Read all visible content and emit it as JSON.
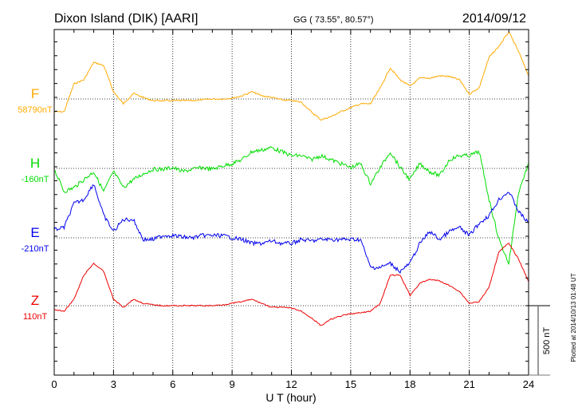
{
  "chart_data": {
    "type": "line",
    "title": "Dixon Island (DIK)  [AARI]",
    "coords": "GG ( 73.55°,  80.57°)",
    "date": "2014/09/12",
    "xlabel": "U T (hour)",
    "xlim": [
      0,
      24
    ],
    "xticks": [
      "0",
      "3",
      "6",
      "9",
      "12",
      "15",
      "18",
      "21",
      "24"
    ],
    "scale_bar_label": "500 nT",
    "scale_bar_nT": 500,
    "plotted_note": "Plotted at 2014/10/13 01:48 UT",
    "grid": "dotted vertical every 3 h, dotted baseline per component",
    "x": [
      0,
      0.5,
      1,
      1.5,
      2,
      2.5,
      3,
      3.5,
      4,
      4.5,
      5,
      5.5,
      6,
      6.5,
      7,
      7.5,
      8,
      8.5,
      9,
      9.5,
      10,
      10.5,
      11,
      11.5,
      12,
      12.5,
      13,
      13.5,
      14,
      14.5,
      15,
      15.5,
      16,
      16.5,
      17,
      17.5,
      18,
      18.5,
      19,
      19.5,
      20,
      20.5,
      21,
      21.5,
      22,
      22.5,
      23,
      23.5,
      24
    ],
    "series": [
      {
        "name": "F",
        "baseline_label": "58790nT",
        "color": "#ffaa00",
        "values": [
          -92,
          -92,
          109,
          138,
          264,
          241,
          52,
          -35,
          40,
          11,
          -12,
          -12,
          -12,
          -12,
          -12,
          -6,
          0,
          0,
          6,
          23,
          52,
          23,
          12,
          -6,
          -12,
          -23,
          -92,
          -150,
          -127,
          -92,
          -63,
          -35,
          -35,
          81,
          224,
          138,
          92,
          150,
          150,
          167,
          161,
          138,
          35,
          81,
          299,
          380,
          483,
          339,
          167
        ]
      },
      {
        "name": "H",
        "baseline_label": "-160nT",
        "color": "#00dd00",
        "values": [
          -6,
          -167,
          -138,
          -81,
          -23,
          -167,
          -23,
          -138,
          -81,
          -40,
          -6,
          -6,
          6,
          -23,
          -6,
          6,
          -6,
          17,
          35,
          63,
          121,
          132,
          150,
          121,
          92,
          92,
          63,
          92,
          63,
          35,
          6,
          35,
          -109,
          6,
          121,
          6,
          -81,
          35,
          -23,
          -52,
          63,
          92,
          92,
          121,
          -224,
          -512,
          -685,
          -167,
          35
        ]
      },
      {
        "name": "E",
        "baseline_label": "-210nT",
        "color": "#0000ee",
        "values": [
          58,
          75,
          247,
          276,
          391,
          161,
          46,
          132,
          132,
          -12,
          -12,
          17,
          17,
          6,
          0,
          17,
          17,
          17,
          0,
          -12,
          -40,
          -40,
          -23,
          -40,
          -40,
          -12,
          -23,
          -12,
          -12,
          -12,
          -12,
          -12,
          -213,
          -213,
          -184,
          -242,
          -184,
          -40,
          46,
          -12,
          46,
          75,
          17,
          104,
          161,
          276,
          334,
          190,
          104
        ]
      },
      {
        "name": "Z",
        "baseline_label": "110nT",
        "color": "#ee0000",
        "values": [
          -29,
          -40,
          46,
          219,
          305,
          247,
          46,
          -12,
          46,
          17,
          6,
          0,
          0,
          0,
          0,
          0,
          0,
          6,
          17,
          29,
          46,
          17,
          -12,
          -12,
          -17,
          -40,
          -86,
          -144,
          -98,
          -75,
          -58,
          -52,
          -40,
          17,
          219,
          219,
          75,
          161,
          190,
          178,
          144,
          104,
          17,
          29,
          132,
          391,
          449,
          334,
          173
        ]
      }
    ]
  }
}
